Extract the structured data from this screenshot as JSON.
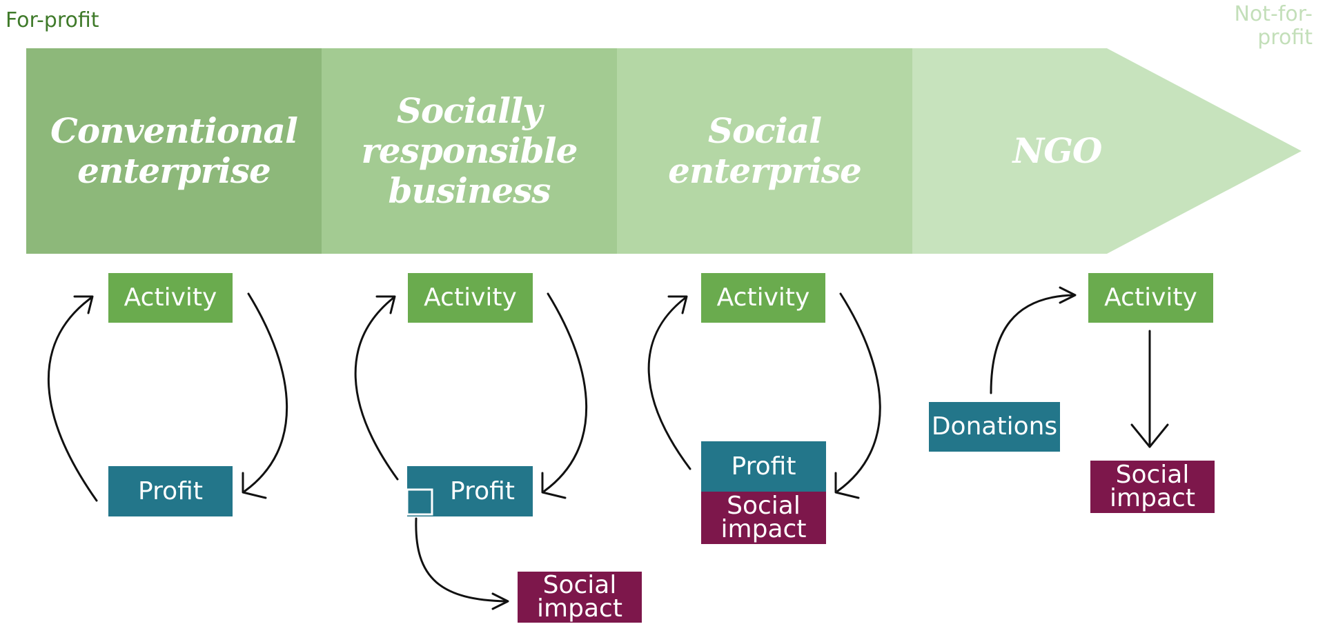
{
  "spectrum": {
    "left_label": "For-profit",
    "right_label": "Not-for-profit",
    "colors": [
      "#8db87a",
      "#a3cb92",
      "#b4d7a5",
      "#c7e3bd"
    ]
  },
  "stages": [
    {
      "name": "Conventional enterprise"
    },
    {
      "name": "Socially responsible business"
    },
    {
      "name": "Social enterprise"
    },
    {
      "name": "NGO"
    }
  ],
  "boxes": {
    "activity": "Activity",
    "profit": "Profit",
    "social_impact": "Social impact",
    "donations": "Donations"
  },
  "colors": {
    "activity": "#6aab4e",
    "profit": "#23768a",
    "social_impact": "#7d174b"
  }
}
